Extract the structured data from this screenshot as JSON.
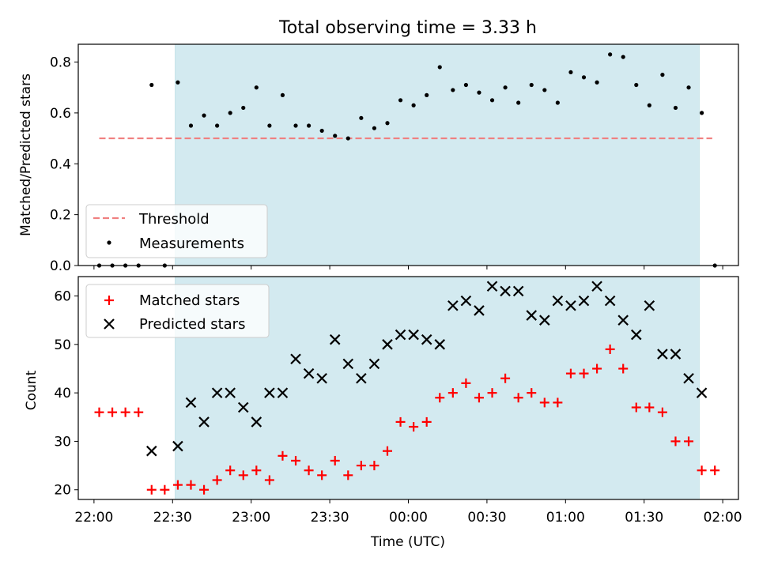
{
  "chart_data": [
    {
      "type": "scatter",
      "title": "Total observing time = 3.33 h",
      "ylabel": "Matched/Predicted stars",
      "xlim": [
        "21:54",
        "02:06"
      ],
      "ylim": [
        0,
        0.87
      ],
      "x_ticks": [
        "22:00",
        "22:30",
        "23:00",
        "23:30",
        "00:00",
        "00:30",
        "01:00",
        "01:30",
        "02:00"
      ],
      "y_ticks": [
        "0.0",
        "0.2",
        "0.4",
        "0.6",
        "0.8"
      ],
      "shaded_span": [
        "22:31",
        "01:51"
      ],
      "shaded_color": "#d3eaf0",
      "threshold": {
        "name": "Threshold",
        "y": 0.5,
        "x": [
          "22:02",
          "01:56"
        ],
        "color": "#f08080",
        "style": "dashed"
      },
      "series": [
        {
          "name": "Measurements",
          "color": "#000000",
          "marker": "dot",
          "x": [
            "22:02",
            "22:07",
            "22:12",
            "22:17",
            "22:22",
            "22:27",
            "22:32",
            "22:37",
            "22:42",
            "22:47",
            "22:52",
            "22:57",
            "23:02",
            "23:07",
            "23:12",
            "23:17",
            "23:22",
            "23:27",
            "23:32",
            "23:37",
            "23:42",
            "23:47",
            "23:52",
            "23:57",
            "00:02",
            "00:07",
            "00:12",
            "00:17",
            "00:22",
            "00:27",
            "00:32",
            "00:37",
            "00:42",
            "00:47",
            "00:52",
            "00:57",
            "01:02",
            "01:07",
            "01:12",
            "01:17",
            "01:22",
            "01:27",
            "01:32",
            "01:37",
            "01:42",
            "01:47",
            "01:52",
            "01:57"
          ],
          "y": [
            0,
            0,
            0,
            0,
            0.71,
            0,
            0.72,
            0.55,
            0.59,
            0.55,
            0.6,
            0.62,
            0.7,
            0.55,
            0.67,
            0.55,
            0.55,
            0.53,
            0.51,
            0.5,
            0.58,
            0.54,
            0.56,
            0.65,
            0.63,
            0.67,
            0.78,
            0.69,
            0.71,
            0.68,
            0.65,
            0.7,
            0.64,
            0.71,
            0.69,
            0.64,
            0.76,
            0.74,
            0.72,
            0.83,
            0.82,
            0.71,
            0.63,
            0.75,
            0.62,
            0.7,
            0.6,
            0
          ]
        }
      ],
      "legend": {
        "placement": "lower-left",
        "entries": [
          "Threshold",
          "Measurements"
        ]
      }
    },
    {
      "type": "scatter",
      "xlabel": "Time (UTC)",
      "ylabel": "Count",
      "xlim": [
        "21:54",
        "02:06"
      ],
      "ylim": [
        18,
        64
      ],
      "x_ticks": [
        "22:00",
        "22:30",
        "23:00",
        "23:30",
        "00:00",
        "00:30",
        "01:00",
        "01:30",
        "02:00"
      ],
      "y_ticks": [
        "20",
        "30",
        "40",
        "50",
        "60"
      ],
      "shaded_span": [
        "22:31",
        "01:51"
      ],
      "shaded_color": "#d3eaf0",
      "series": [
        {
          "name": "Matched stars",
          "color": "#ff0000",
          "marker": "plus",
          "x": [
            "22:02",
            "22:07",
            "22:12",
            "22:17",
            "22:22",
            "22:27",
            "22:32",
            "22:37",
            "22:42",
            "22:47",
            "22:52",
            "22:57",
            "23:02",
            "23:07",
            "23:12",
            "23:17",
            "23:22",
            "23:27",
            "23:32",
            "23:37",
            "23:42",
            "23:47",
            "23:52",
            "23:57",
            "00:02",
            "00:07",
            "00:12",
            "00:17",
            "00:22",
            "00:27",
            "00:32",
            "00:37",
            "00:42",
            "00:47",
            "00:52",
            "00:57",
            "01:02",
            "01:07",
            "01:12",
            "01:17",
            "01:22",
            "01:27",
            "01:32",
            "01:37",
            "01:42",
            "01:47",
            "01:52",
            "01:57"
          ],
          "y": [
            36,
            36,
            36,
            36,
            20,
            20,
            21,
            21,
            20,
            22,
            24,
            23,
            24,
            22,
            27,
            26,
            24,
            23,
            26,
            23,
            25,
            25,
            28,
            34,
            33,
            34,
            39,
            40,
            42,
            39,
            40,
            43,
            39,
            40,
            38,
            38,
            44,
            44,
            45,
            49,
            45,
            37,
            37,
            36,
            30,
            30,
            24,
            24
          ]
        },
        {
          "name": "Predicted stars",
          "color": "#000000",
          "marker": "x",
          "x": [
            "22:22",
            "22:32",
            "22:37",
            "22:42",
            "22:47",
            "22:52",
            "22:57",
            "23:02",
            "23:07",
            "23:12",
            "23:17",
            "23:22",
            "23:27",
            "23:32",
            "23:37",
            "23:42",
            "23:47",
            "23:52",
            "23:57",
            "00:02",
            "00:07",
            "00:12",
            "00:17",
            "00:22",
            "00:27",
            "00:32",
            "00:37",
            "00:42",
            "00:47",
            "00:52",
            "00:57",
            "01:02",
            "01:07",
            "01:12",
            "01:17",
            "01:22",
            "01:27",
            "01:32",
            "01:37",
            "01:42",
            "01:47",
            "01:52"
          ],
          "y": [
            28,
            29,
            38,
            34,
            40,
            40,
            37,
            34,
            40,
            40,
            47,
            44,
            43,
            51,
            46,
            43,
            46,
            50,
            52,
            52,
            51,
            50,
            58,
            59,
            57,
            62,
            61,
            61,
            56,
            55,
            59,
            58,
            59,
            62,
            59,
            55,
            52,
            58,
            48,
            48,
            43,
            40
          ]
        }
      ],
      "legend": {
        "placement": "upper-left",
        "entries": [
          "Matched stars",
          "Predicted stars"
        ]
      }
    }
  ]
}
